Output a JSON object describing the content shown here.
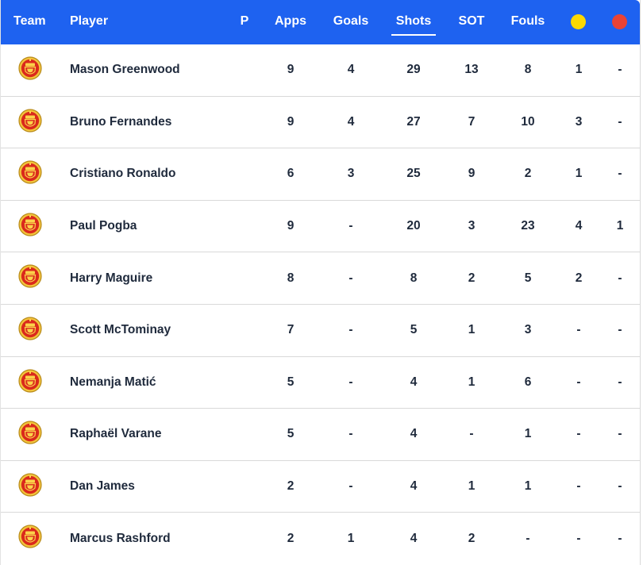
{
  "header": {
    "columns": [
      {
        "key": "team",
        "label": "Team"
      },
      {
        "key": "player",
        "label": "Player"
      },
      {
        "key": "p",
        "label": "P"
      },
      {
        "key": "apps",
        "label": "Apps"
      },
      {
        "key": "goals",
        "label": "Goals"
      },
      {
        "key": "shots",
        "label": "Shots",
        "active": true
      },
      {
        "key": "sot",
        "label": "SOT"
      },
      {
        "key": "fouls",
        "label": "Fouls"
      }
    ],
    "yellow_card_icon": "yellow-card-icon",
    "red_card_icon": "red-card-icon",
    "colors": {
      "header_bg": "#1e62f0",
      "yellow": "#fbd802",
      "red": "#ea4335"
    }
  },
  "team_badge_icon": "manchester-united-crest-icon",
  "rows": [
    {
      "player": "Mason Greenwood",
      "apps": "9",
      "goals": "4",
      "shots": "29",
      "sot": "13",
      "fouls": "8",
      "yellow": "1",
      "red": "-"
    },
    {
      "player": "Bruno Fernandes",
      "apps": "9",
      "goals": "4",
      "shots": "27",
      "sot": "7",
      "fouls": "10",
      "yellow": "3",
      "red": "-"
    },
    {
      "player": "Cristiano Ronaldo",
      "apps": "6",
      "goals": "3",
      "shots": "25",
      "sot": "9",
      "fouls": "2",
      "yellow": "1",
      "red": "-"
    },
    {
      "player": "Paul Pogba",
      "apps": "9",
      "goals": "-",
      "shots": "20",
      "sot": "3",
      "fouls": "23",
      "yellow": "4",
      "red": "1"
    },
    {
      "player": "Harry Maguire",
      "apps": "8",
      "goals": "-",
      "shots": "8",
      "sot": "2",
      "fouls": "5",
      "yellow": "2",
      "red": "-"
    },
    {
      "player": "Scott McTominay",
      "apps": "7",
      "goals": "-",
      "shots": "5",
      "sot": "1",
      "fouls": "3",
      "yellow": "-",
      "red": "-"
    },
    {
      "player": "Nemanja Matić",
      "apps": "5",
      "goals": "-",
      "shots": "4",
      "sot": "1",
      "fouls": "6",
      "yellow": "-",
      "red": "-"
    },
    {
      "player": "Raphaël Varane",
      "apps": "5",
      "goals": "-",
      "shots": "4",
      "sot": "-",
      "fouls": "1",
      "yellow": "-",
      "red": "-"
    },
    {
      "player": "Dan James",
      "apps": "2",
      "goals": "-",
      "shots": "4",
      "sot": "1",
      "fouls": "1",
      "yellow": "-",
      "red": "-"
    },
    {
      "player": "Marcus Rashford",
      "apps": "2",
      "goals": "1",
      "shots": "4",
      "sot": "2",
      "fouls": "-",
      "yellow": "-",
      "red": "-"
    }
  ]
}
